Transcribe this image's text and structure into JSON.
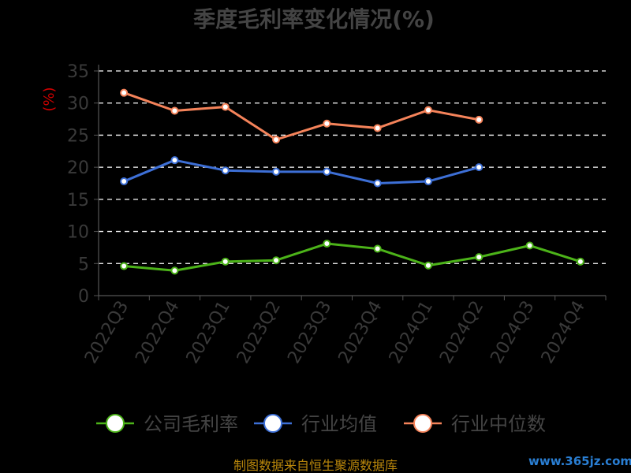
{
  "chart_data": {
    "type": "line",
    "title": "季度毛利率变化情况(%)",
    "xlabel": "",
    "ylabel": "(%)",
    "ylim": [
      0,
      35
    ],
    "yticks": [
      0,
      5,
      10,
      15,
      20,
      25,
      30,
      35
    ],
    "grid": true,
    "legend_position": "bottom",
    "categories": [
      "2022Q3",
      "2022Q4",
      "2023Q1",
      "2023Q2",
      "2023Q3",
      "2023Q4",
      "2024Q1",
      "2024Q2",
      "2024Q3",
      "2024Q4"
    ],
    "series": [
      {
        "name": "公司毛利率",
        "color": "#4cb319",
        "values": [
          4.6,
          3.9,
          5.3,
          5.5,
          8.1,
          7.3,
          4.7,
          6.0,
          7.8,
          5.3
        ]
      },
      {
        "name": "行业均值",
        "color": "#3d6fd6",
        "values": [
          17.8,
          21.1,
          19.5,
          19.3,
          19.3,
          17.5,
          17.8,
          20.0,
          null,
          null
        ]
      },
      {
        "name": "行业中位数",
        "color": "#f5835a",
        "values": [
          31.6,
          28.8,
          29.4,
          24.3,
          26.8,
          26.1,
          28.9,
          27.4,
          null,
          null
        ]
      }
    ]
  },
  "footer": {
    "source": "制图数据来自恒生聚源数据库"
  },
  "watermark": {
    "text": "www.365jz.com"
  }
}
